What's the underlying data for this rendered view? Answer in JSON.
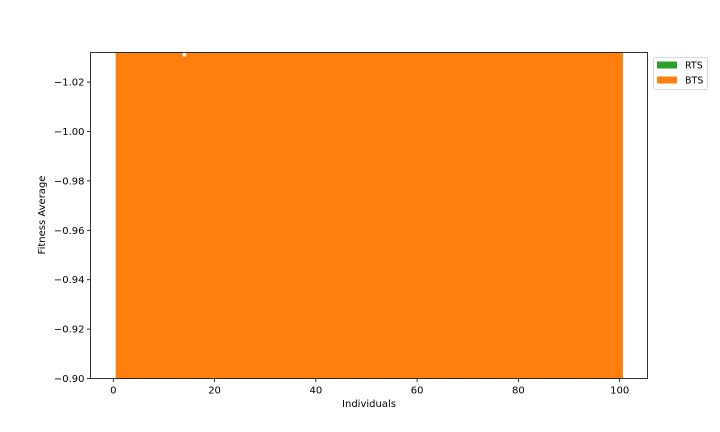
{
  "chart_data": {
    "type": "bar",
    "title": "",
    "xlabel": "Individuals",
    "ylabel": "Fitness Average",
    "xlim": [
      -4.5,
      105.5
    ],
    "ylim": [
      -0.9,
      -1.032
    ],
    "y_inverted": true,
    "x_ticks": [
      0,
      20,
      40,
      60,
      80,
      100
    ],
    "y_ticks": [
      -0.9,
      -0.92,
      -0.94,
      -0.96,
      -0.98,
      -1.0,
      -1.02
    ],
    "y_tick_labels": [
      "−0.90",
      "−0.92",
      "−0.94",
      "−0.96",
      "−0.98",
      "−1.00",
      "−1.02"
    ],
    "grid": false,
    "legend_position": "outside-top-right",
    "bars": {
      "x_start": 0.5,
      "x_end": 100.5,
      "count": 100
    },
    "series": [
      {
        "name": "RTS",
        "color": "#2ca02c",
        "values": "bars extend beyond visible axis range (fully hidden behind BTS)"
      },
      {
        "name": "BTS",
        "color": "#ff7f0e",
        "values": "bars extend beyond visible axis range"
      }
    ],
    "gap_marker": {
      "x": 14
    }
  }
}
